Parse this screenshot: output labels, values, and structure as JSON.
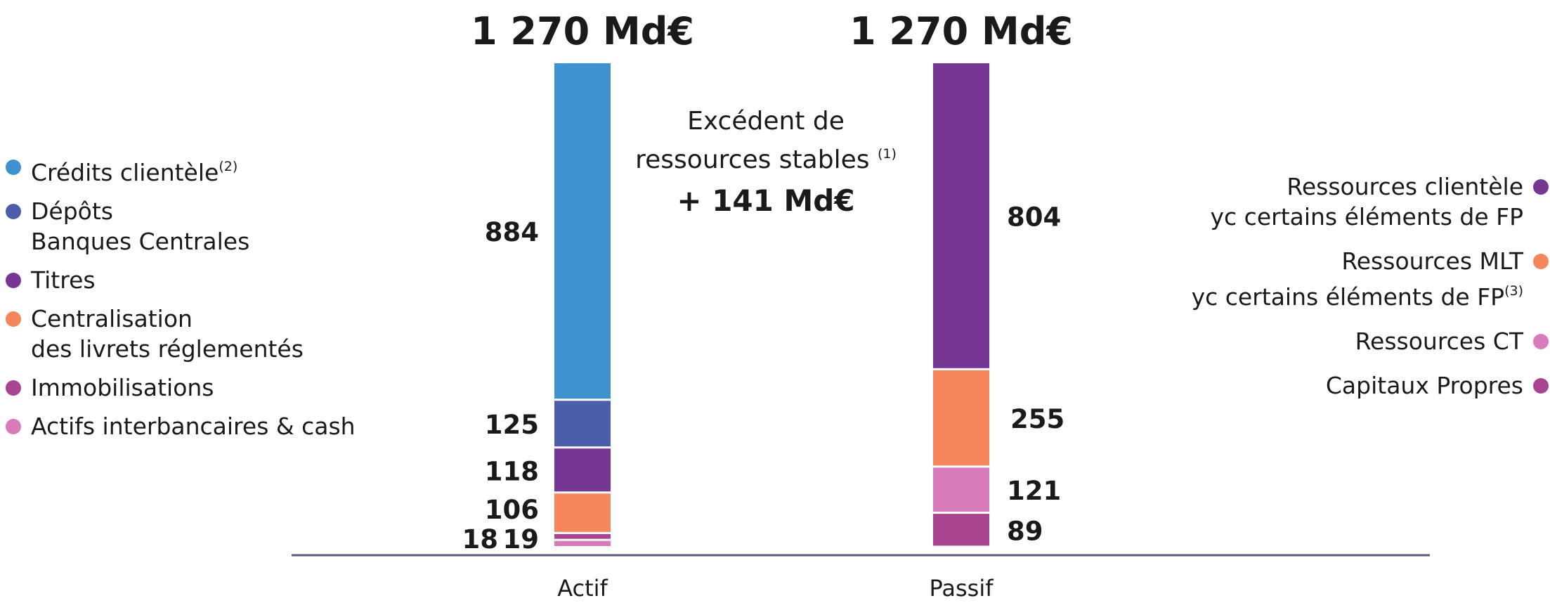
{
  "chart_data": {
    "type": "bar",
    "stacked": true,
    "categories": [
      "Actif",
      "Passif"
    ],
    "totals_labels": [
      "1 270 Md€",
      "1 270 Md€"
    ],
    "series": [
      {
        "stack": "Actif",
        "segments": [
          {
            "label": "Crédits clientèle",
            "note": "(2)",
            "value": 884,
            "color": "#3E92D0"
          },
          {
            "label": "Dépôts\nBanques Centrales",
            "value": 125,
            "color": "#4C5EA9"
          },
          {
            "label": "Titres",
            "value": 118,
            "color": "#763693"
          },
          {
            "label": "Centralisation\ndes livrets réglementés",
            "value": 106,
            "color": "#F5875A"
          },
          {
            "label": "Immobilisations",
            "value": 18,
            "color": "#A94490"
          },
          {
            "label": "Actifs interbancaires & cash",
            "value": 19,
            "color": "#D87BBA"
          }
        ]
      },
      {
        "stack": "Passif",
        "segments": [
          {
            "label": "Ressources clientèle\nyc certains éléments de FP",
            "value": 804,
            "color": "#763693"
          },
          {
            "label": "Ressources MLT\nyc certains éléments de FP",
            "note": "(3)",
            "value": 255,
            "color": "#F5875A"
          },
          {
            "label": "Ressources CT",
            "value": 121,
            "color": "#D87BBA"
          },
          {
            "label": "Capitaux Propres",
            "value": 89,
            "color": "#A94490"
          }
        ]
      }
    ],
    "value_labels_actif": [
      "884",
      "125",
      "118",
      "106",
      "18",
      "19"
    ],
    "value_labels_passif": [
      "804",
      "255",
      "121",
      "89"
    ],
    "annotation": {
      "line1": "Excédent de",
      "line2": "ressources stables",
      "note": "(1)",
      "value": "+ 141 Md€"
    },
    "ylim": [
      0,
      1270
    ],
    "grid": false,
    "axis_color": "#5A5A78"
  }
}
